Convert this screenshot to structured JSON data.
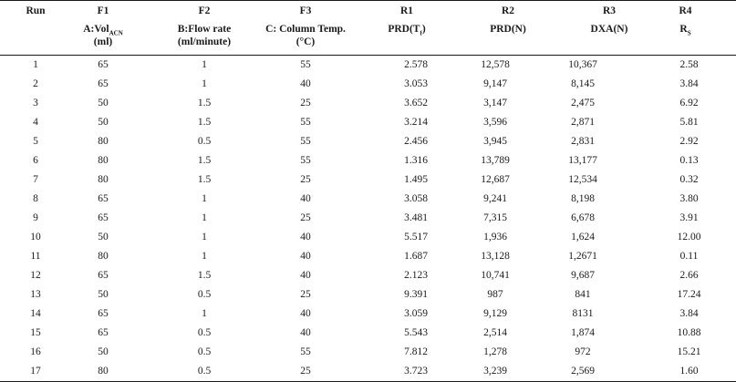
{
  "header": {
    "row1": [
      "Run",
      "F1",
      "F2",
      "F3",
      "R1",
      "R2",
      "R3",
      "R4"
    ],
    "f1_label_main": "A:Vol",
    "f1_label_sub": "ACN",
    "f1_label_unit": "(ml)",
    "f2_label_line1": "B:Flow rate",
    "f2_label_line2": "(ml/minute)",
    "f3_label_line1": "C: Column Temp.",
    "f3_label_line2": "(°C)",
    "r1_label_main": "PRD(T",
    "r1_label_sub": "f",
    "r1_label_end": ")",
    "r2_label": "PRD(N)",
    "r3_label": "DXA(N)",
    "r4_label_main": "R",
    "r4_label_sub": "S"
  },
  "rows": [
    [
      "1",
      "65",
      "1",
      "55",
      "2.578",
      "12,578",
      "10,367",
      "2.58"
    ],
    [
      "2",
      "65",
      "1",
      "40",
      "3.053",
      "9,147",
      "8,145",
      "3.84"
    ],
    [
      "3",
      "50",
      "1.5",
      "25",
      "3.652",
      "3,147",
      "2,475",
      "6.92"
    ],
    [
      "4",
      "50",
      "1.5",
      "55",
      "3.214",
      "3,596",
      "2,871",
      "5.81"
    ],
    [
      "5",
      "80",
      "0.5",
      "55",
      "2.456",
      "3,945",
      "2,831",
      "2.92"
    ],
    [
      "6",
      "80",
      "1.5",
      "55",
      "1.316",
      "13,789",
      "13,177",
      "0.13"
    ],
    [
      "7",
      "80",
      "1.5",
      "25",
      "1.495",
      "12,687",
      "12,534",
      "0.32"
    ],
    [
      "8",
      "65",
      "1",
      "40",
      "3.058",
      "9,241",
      "8,198",
      "3.80"
    ],
    [
      "9",
      "65",
      "1",
      "25",
      "3.481",
      "7,315",
      "6,678",
      "3.91"
    ],
    [
      "10",
      "50",
      "1",
      "40",
      "5.517",
      "1,936",
      "1,624",
      "12.00"
    ],
    [
      "11",
      "80",
      "1",
      "40",
      "1.687",
      "13,128",
      "1,2671",
      "0.11"
    ],
    [
      "12",
      "65",
      "1.5",
      "40",
      "2.123",
      "10,741",
      "9,687",
      "2.66"
    ],
    [
      "13",
      "50",
      "0.5",
      "25",
      "9.391",
      "987",
      "841",
      "17.24"
    ],
    [
      "14",
      "65",
      "1",
      "40",
      "3.059",
      "9,129",
      "8131",
      "3.84"
    ],
    [
      "15",
      "65",
      "0.5",
      "40",
      "5.543",
      "2,514",
      "1,874",
      "10.88"
    ],
    [
      "16",
      "50",
      "0.5",
      "55",
      "7.812",
      "1,278",
      "972",
      "15.21"
    ],
    [
      "17",
      "80",
      "0.5",
      "25",
      "3.723",
      "3,239",
      "2,569",
      "1.60"
    ]
  ]
}
